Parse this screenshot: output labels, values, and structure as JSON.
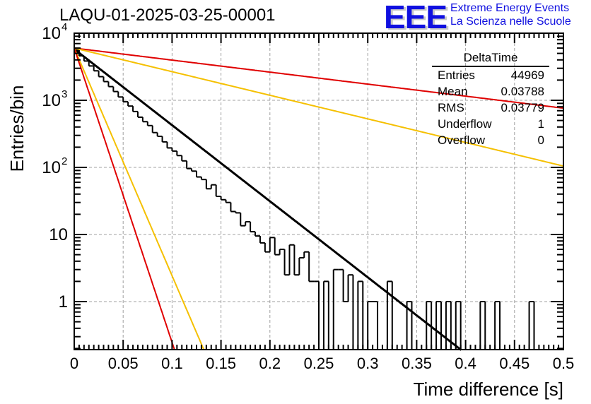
{
  "header": {
    "title": "LAQU-01-2025-03-25-00001",
    "logo_text": "EEE",
    "logo_line1": "Extreme Energy Events",
    "logo_line2": "La Scienza nelle Scuole"
  },
  "stats_box": {
    "title": "DeltaTime",
    "rows": [
      {
        "label": "Entries",
        "value": "44969"
      },
      {
        "label": "Mean",
        "value": "0.03788"
      },
      {
        "label": "RMS",
        "value": "0.03779"
      },
      {
        "label": "Underflow",
        "value": "1"
      },
      {
        "label": "Overflow",
        "value": "0"
      }
    ]
  },
  "colors": {
    "histogram": "#000000",
    "fit": "#000000",
    "red_curve": "#e00000",
    "yellow_curve": "#f5c000",
    "grid": "#a0a0a0"
  },
  "chart_data": {
    "type": "histogram",
    "title": "LAQU-01-2025-03-25-00001",
    "xlabel": "Time difference [s]",
    "ylabel": "Entries/bin",
    "xlim": [
      0,
      0.5
    ],
    "ylim": [
      0.19,
      10000
    ],
    "yscale": "log",
    "grid": true,
    "x_ticks": [
      "0",
      "0.05",
      "0.1",
      "0.15",
      "0.2",
      "0.25",
      "0.3",
      "0.35",
      "0.4",
      "0.45",
      "0.5"
    ],
    "x_tick_values": [
      0,
      0.05,
      0.1,
      0.15,
      0.2,
      0.25,
      0.3,
      0.35,
      0.4,
      0.45,
      0.5
    ],
    "y_ticks": [
      {
        "value": 10000,
        "label": "10",
        "exp": "4"
      },
      {
        "value": 1000,
        "label": "10",
        "exp": "3"
      },
      {
        "value": 100,
        "label": "10",
        "exp": "2"
      },
      {
        "value": 10,
        "label": "10",
        "exp": ""
      },
      {
        "value": 1,
        "label": "1",
        "exp": ""
      }
    ],
    "bin_width": 0.005,
    "bins": [
      5600,
      4600,
      3850,
      3250,
      2750,
      2250,
      1900,
      1600,
      1350,
      1120,
      950,
      820,
      680,
      560,
      480,
      420,
      330,
      290,
      240,
      195,
      175,
      150,
      125,
      96,
      88,
      72,
      66,
      48,
      55,
      37,
      33,
      30,
      22,
      21,
      13.5,
      15.5,
      11,
      9.5,
      7.5,
      5.5,
      9,
      5,
      6,
      2.5,
      7,
      2.5,
      4.5,
      5.5,
      2,
      2,
      0,
      2,
      0,
      3,
      3,
      1,
      2.5,
      0,
      2,
      0,
      1,
      1,
      0,
      0,
      2,
      0,
      0,
      0,
      1,
      0,
      0,
      0,
      1,
      0,
      1,
      0,
      1,
      0,
      1,
      0,
      0,
      0,
      0,
      1,
      0,
      0,
      1,
      0,
      0,
      0,
      0,
      0,
      0,
      1,
      0,
      0,
      0,
      0,
      0,
      0
    ],
    "series": [
      {
        "name": "fit",
        "color": "#000000",
        "A": 5800,
        "tau": 0.0383
      },
      {
        "name": "red-slow",
        "color": "#e00000",
        "A": 6000,
        "tau": 0.2425
      },
      {
        "name": "yellow-slow",
        "color": "#f5c000",
        "A": 6000,
        "tau": 0.1235
      },
      {
        "name": "yellow-fast",
        "color": "#f5c000",
        "A": 6000,
        "tau": 0.0128
      },
      {
        "name": "red-fast",
        "color": "#e00000",
        "A": 6000,
        "tau": 0.0099
      }
    ]
  }
}
